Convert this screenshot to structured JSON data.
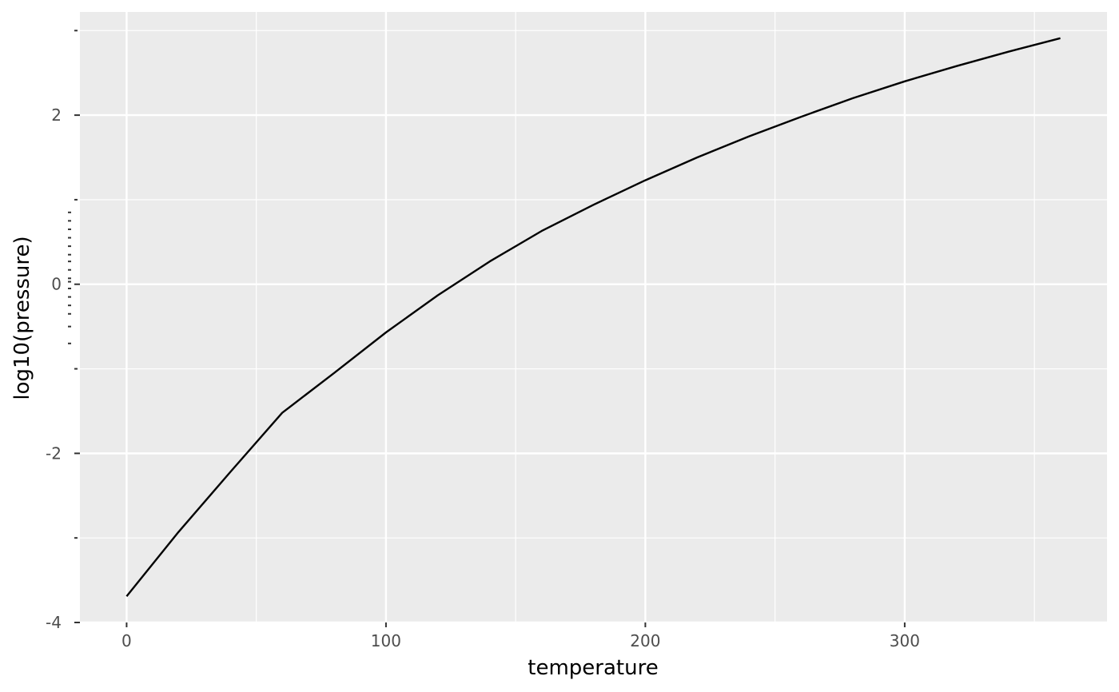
{
  "chart_data": {
    "type": "line",
    "title": "",
    "xlabel": "temperature",
    "ylabel": "log10(pressure)",
    "xlim": [
      -18,
      378
    ],
    "ylim": [
      -4.0,
      3.22
    ],
    "x_ticks_major": [
      0,
      100,
      200,
      300
    ],
    "x_ticks_minor": [
      50,
      150,
      250,
      350
    ],
    "y_ticks_major": [
      -4,
      -2,
      0,
      2
    ],
    "y_ticks_minor": [
      -3,
      -1,
      1,
      3
    ],
    "y_rug_ticks": [
      -0.7,
      -0.5,
      -0.35,
      -0.25,
      -0.15,
      -0.05,
      0.03,
      0.07,
      0.17,
      0.27,
      0.35,
      0.45,
      0.55,
      0.65,
      0.75,
      0.85
    ],
    "grid": true,
    "background": "#ebebeb",
    "grid_color": "#ffffff",
    "line_color": "#000000",
    "series": [
      {
        "x": [
          0,
          20,
          40,
          60,
          80,
          100,
          120,
          140,
          160,
          180,
          200,
          220,
          240,
          260,
          280,
          300,
          320,
          340,
          360
        ],
        "values": [
          -3.69,
          -2.93,
          -2.22,
          -1.52,
          -1.05,
          -0.57,
          -0.13,
          0.27,
          0.63,
          0.94,
          1.23,
          1.5,
          1.75,
          1.98,
          2.2,
          2.4,
          2.58,
          2.75,
          2.91
        ]
      }
    ]
  }
}
